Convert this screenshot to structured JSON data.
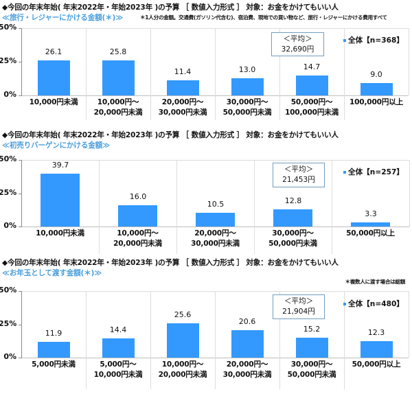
{
  "chart_data": [
    {
      "type": "bar",
      "title": "◆今回の年末年始( 年末2022年・年始2023年 )の予算 ［ 数値入力形式 ］ 対象：お金をかけてもいい人",
      "subtitle": "≪旅行・レジャーにかける金額(＊)≫",
      "note": "＊1人分の金額。交通費(ガソリン代含む)、宿泊費、現地での買い物など、旅行・レジャーにかける費用すべて",
      "categories": [
        "10,000円未満",
        "10,000円～\n20,000円未満",
        "20,000円～\n30,000円未満",
        "30,000円～\n50,000円未満",
        "50,000円～\n100,000円未満",
        "100,000円以上"
      ],
      "values": [
        26.1,
        25.8,
        11.4,
        13.0,
        14.7,
        9.0
      ],
      "value_labels": [
        "26.1",
        "25.8",
        "11.4",
        "13.0",
        "14.7",
        "9.0"
      ],
      "series": [
        {
          "name": "全体【n=368】",
          "values": [
            26.1,
            25.8,
            11.4,
            13.0,
            14.7,
            9.0
          ]
        }
      ],
      "legend": "全体【n=368】",
      "legend_position": "upper-right",
      "average": {
        "label": "＜平均＞",
        "value": "32,690円"
      },
      "yticks": [
        "50%",
        "25%",
        "0%"
      ],
      "ylim": [
        0,
        50
      ],
      "xlabel": "",
      "ylabel": "",
      "grid": false,
      "colors": {
        "bar": "#3399ff",
        "subtitle": "#4a9fdc"
      }
    },
    {
      "type": "bar",
      "title": "◆今回の年末年始( 年末2022年・年始2023年 )の予算 ［ 数値入力形式 ］ 対象：お金をかけてもいい人",
      "subtitle": "≪初売りバーゲンにかける金額≫",
      "note": "",
      "categories": [
        "10,000円未満",
        "10,000円～\n20,000円未満",
        "20,000円～\n30,000円未満",
        "30,000円～\n50,000円未満",
        "50,000円以上"
      ],
      "values": [
        39.7,
        16.0,
        10.5,
        12.8,
        3.3
      ],
      "value_labels": [
        "39.7",
        "16.0",
        "10.5",
        "12.8",
        "3.3"
      ],
      "series": [
        {
          "name": "全体【n=257】",
          "values": [
            39.7,
            16.0,
            10.5,
            12.8,
            3.3
          ]
        }
      ],
      "legend": "全体【n=257】",
      "legend_position": "upper-right",
      "average": {
        "label": "＜平均＞",
        "value": "21,453円"
      },
      "yticks": [
        "50%",
        "25%",
        "0%"
      ],
      "ylim": [
        0,
        50
      ],
      "xlabel": "",
      "ylabel": "",
      "grid": false,
      "colors": {
        "bar": "#3399ff",
        "subtitle": "#4a9fdc"
      }
    },
    {
      "type": "bar",
      "title": "◆今回の年末年始( 年末2022年・年始2023年 )の予算 ［ 数値入力形式 ］ 対象：お金をかけてもいい人",
      "subtitle": "≪お年玉として渡す金額(＊)≫",
      "note": "＊複数人に渡す場合は総額",
      "categories": [
        "5,000円未満",
        "5,000円～\n10,000円未満",
        "10,000円～\n20,000円未満",
        "20,000円～\n30,000円未満",
        "30,000円～\n50,000円未満",
        "50,000円以上"
      ],
      "values": [
        11.9,
        14.4,
        25.6,
        20.6,
        15.2,
        12.3
      ],
      "value_labels": [
        "11.9",
        "14.4",
        "25.6",
        "20.6",
        "15.2",
        "12.3"
      ],
      "series": [
        {
          "name": "全体【n=480】",
          "values": [
            11.9,
            14.4,
            25.6,
            20.6,
            15.2,
            12.3
          ]
        }
      ],
      "legend": "全体【n=480】",
      "legend_position": "upper-right",
      "average": {
        "label": "＜平均＞",
        "value": "21,904円"
      },
      "yticks": [
        "50%",
        "25%",
        "0%"
      ],
      "ylim": [
        0,
        50
      ],
      "xlabel": "",
      "ylabel": "",
      "grid": false,
      "colors": {
        "bar": "#3399ff",
        "subtitle": "#4a9fdc"
      }
    }
  ]
}
